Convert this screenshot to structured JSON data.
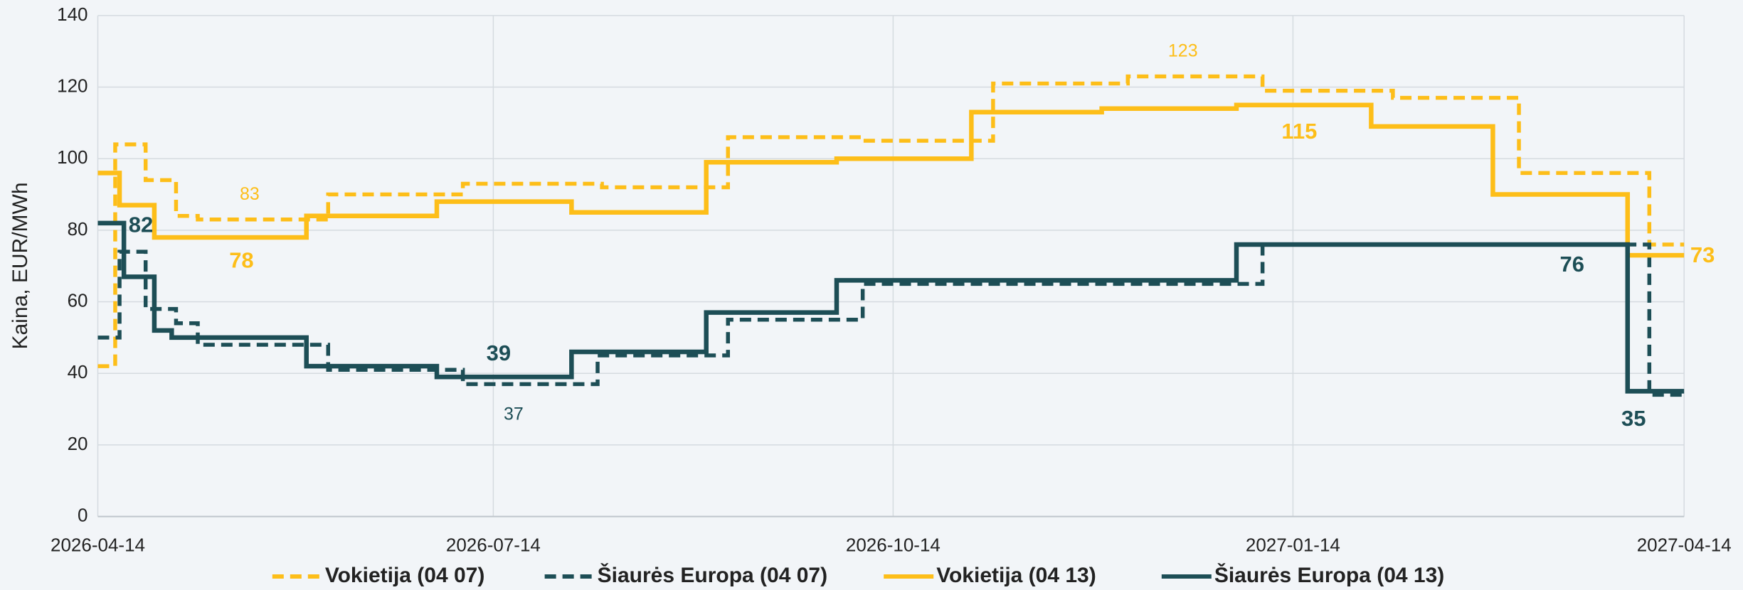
{
  "chart_data": {
    "type": "step",
    "y_label": "Kaina, EUR/MWh",
    "ylim": [
      0,
      140
    ],
    "yticks": [
      0,
      20,
      40,
      60,
      80,
      100,
      120,
      140
    ],
    "xlim": [
      "2026-04-14",
      "2027-04-14"
    ],
    "xticks": [
      "2026-04-14",
      "2026-07-14",
      "2026-10-14",
      "2027-01-14",
      "2027-04-14"
    ],
    "grid": true,
    "legend": "bottom",
    "series": [
      {
        "name": "Vokietija (04 07)",
        "color": "#fdbe19",
        "dashed": true,
        "x": [
          "2026-04-14",
          "2026-04-18",
          "2026-04-25",
          "2026-05-02",
          "2026-05-07",
          "2026-06-06",
          "2026-07-07",
          "2026-08-08",
          "2026-09-06",
          "2026-10-07",
          "2026-11-06",
          "2026-12-07",
          "2027-01-07",
          "2027-02-06",
          "2027-03-07",
          "2027-04-06",
          "2027-04-14"
        ],
        "values": [
          42,
          104,
          94,
          84,
          83,
          90,
          93,
          92,
          106,
          105,
          121,
          123,
          119,
          117,
          96,
          76,
          76
        ],
        "value_labels": [
          null,
          null,
          null,
          null,
          "83",
          null,
          null,
          null,
          null,
          null,
          null,
          "123",
          null,
          null,
          null,
          null,
          null
        ]
      },
      {
        "name": "Šiaurės Europa (04 07)",
        "color": "#1d4e56",
        "dashed": true,
        "x": [
          "2026-04-14",
          "2026-04-19",
          "2026-04-25",
          "2026-05-02",
          "2026-05-07",
          "2026-06-06",
          "2026-07-07",
          "2026-08-07",
          "2026-09-06",
          "2026-10-07",
          "2027-01-07",
          "2027-04-06",
          "2027-04-14"
        ],
        "values": [
          50,
          74,
          58,
          54,
          48,
          41,
          37,
          45,
          55,
          65,
          76,
          34,
          34
        ],
        "value_labels": [
          null,
          null,
          null,
          null,
          null,
          null,
          "37",
          null,
          null,
          null,
          null,
          null,
          null
        ]
      },
      {
        "name": "Vokietija (04 13)",
        "color": "#fdbe19",
        "dashed": false,
        "x": [
          "2026-04-14",
          "2026-04-19",
          "2026-04-27",
          "2026-06-01",
          "2026-07-01",
          "2026-08-01",
          "2026-09-01",
          "2026-10-01",
          "2026-11-01",
          "2026-12-01",
          "2027-01-01",
          "2027-02-01",
          "2027-03-01",
          "2027-04-01",
          "2027-04-14"
        ],
        "values": [
          96,
          87,
          78,
          84,
          88,
          85,
          99,
          100,
          113,
          114,
          115,
          109,
          90,
          73,
          73
        ],
        "value_labels": [
          null,
          null,
          "78",
          null,
          null,
          null,
          null,
          null,
          null,
          null,
          "115",
          null,
          null,
          "73",
          null
        ]
      },
      {
        "name": "Šiaurės Europa (04 13)",
        "color": "#1d4e56",
        "dashed": false,
        "x": [
          "2026-04-14",
          "2026-04-20",
          "2026-04-27",
          "2026-05-01",
          "2026-06-01",
          "2026-07-01",
          "2026-08-01",
          "2026-09-01",
          "2026-10-01",
          "2027-01-01",
          "2027-04-01",
          "2027-04-14"
        ],
        "values": [
          82,
          67,
          52,
          50,
          42,
          39,
          46,
          57,
          66,
          76,
          35,
          35
        ],
        "value_labels": [
          "82",
          null,
          null,
          null,
          null,
          "39",
          null,
          null,
          null,
          "76",
          "35",
          null
        ]
      }
    ]
  }
}
